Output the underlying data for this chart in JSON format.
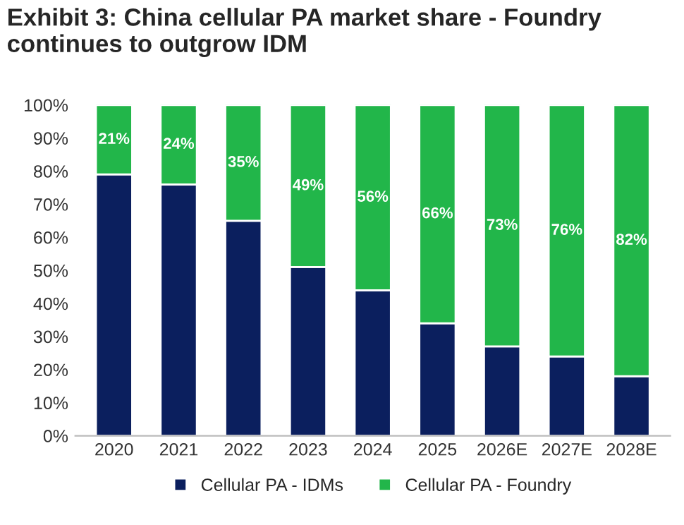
{
  "chart_data": {
    "type": "bar",
    "title": "Exhibit 3: China cellular PA market share - Foundry continues to outgrow IDM",
    "categories": [
      "2020",
      "2021",
      "2022",
      "2023",
      "2024",
      "2025",
      "2026E",
      "2027E",
      "2028E"
    ],
    "stacked": true,
    "series": [
      {
        "name": "Cellular PA - IDMs",
        "color": "#0b1f5e",
        "values": [
          79,
          76,
          65,
          51,
          44,
          34,
          27,
          24,
          18
        ]
      },
      {
        "name": "Cellular PA - Foundry",
        "color": "#22b64a",
        "values": [
          21,
          24,
          35,
          49,
          56,
          66,
          73,
          76,
          82
        ],
        "value_labels": [
          "21%",
          "24%",
          "35%",
          "49%",
          "56%",
          "66%",
          "73%",
          "76%",
          "82%"
        ]
      }
    ],
    "ylim": [
      0,
      100
    ],
    "yticks": [
      {
        "value": 0,
        "label": "0%"
      },
      {
        "value": 10,
        "label": "10%"
      },
      {
        "value": 20,
        "label": "20%"
      },
      {
        "value": 30,
        "label": "30%"
      },
      {
        "value": 40,
        "label": "40%"
      },
      {
        "value": 50,
        "label": "50%"
      },
      {
        "value": 60,
        "label": "60%"
      },
      {
        "value": 70,
        "label": "70%"
      },
      {
        "value": 80,
        "label": "80%"
      },
      {
        "value": 90,
        "label": "90%"
      },
      {
        "value": 100,
        "label": "100%"
      }
    ],
    "legend": "bottom"
  }
}
